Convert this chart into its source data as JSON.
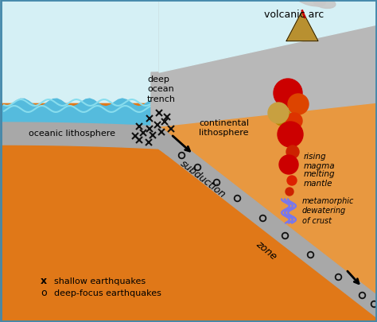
{
  "bg_sky": "#d5f0f5",
  "bg_ocean_water": "#55bbdd",
  "bg_mantle": "#e07818",
  "bg_gray_plate": "#a8a8a8",
  "bg_continental": "#b8b8b8",
  "bg_orange_wedge": "#e89840",
  "border_color": "#4488aa",
  "wave_color": "#3399cc",
  "title": "volcanic arc",
  "labels": {
    "oceanic_lithosphere": "oceanic lithosphere",
    "deep_ocean_trench": "deep\nocean\ntrench",
    "continental_lithosphere": "continental\nlithosphere",
    "subduction": "subduction",
    "zone": "zone",
    "rising_magma": "rising\nmagma",
    "melting_mantle": "melting\nmantle",
    "metamorphic": "metamorphic\ndewatering\nof crust",
    "shallow_eq": "shallow earthquakes",
    "deep_eq": "deep-focus earthquakes"
  },
  "figsize": [
    4.74,
    4.06
  ],
  "dpi": 100
}
